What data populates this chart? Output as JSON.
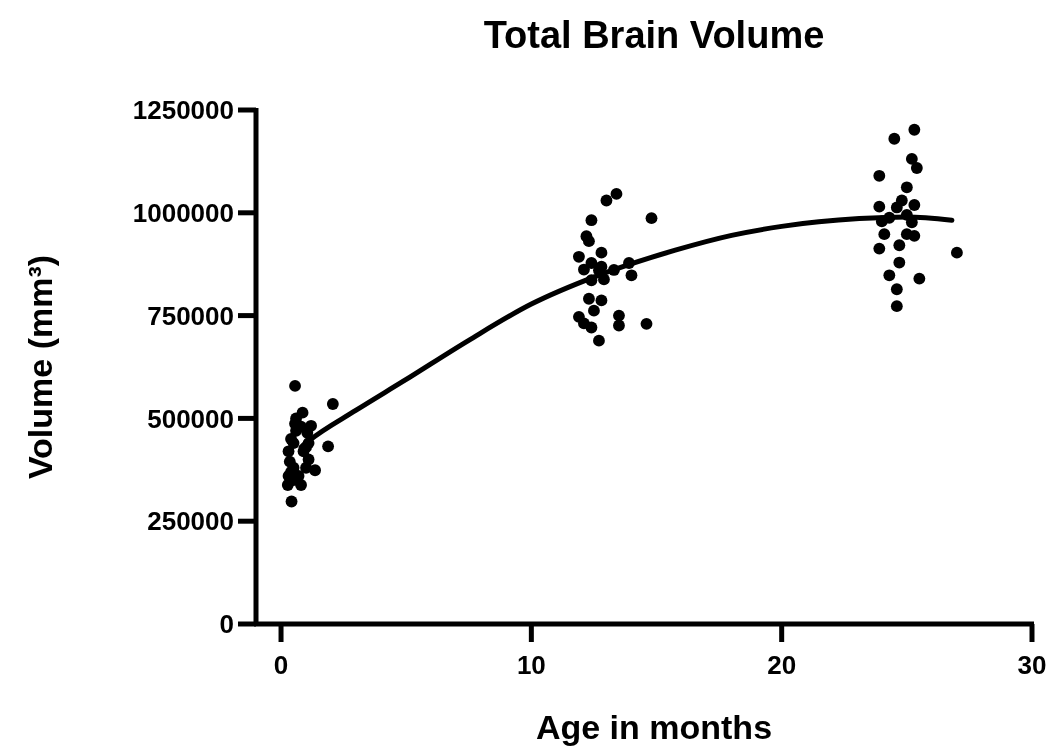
{
  "chart_data": {
    "type": "scatter",
    "title": "Total Brain Volume",
    "xlabel": "Age in months",
    "ylabel": "Volume (mm³)",
    "xlim": [
      -1,
      30
    ],
    "xticks": [
      0,
      10,
      20,
      30
    ],
    "ylim": [
      0,
      1250000
    ],
    "yticks": [
      0,
      250000,
      500000,
      750000,
      1000000,
      1250000
    ],
    "marker": "circle",
    "series": [
      {
        "color": "#000000",
        "x": [
          0.56,
          2.07,
          1.88,
          0.42,
          0.27,
          0.8,
          1.36,
          0.86,
          1.2,
          0.56,
          0.3,
          0.4,
          0.5,
          0.9,
          1.0,
          1.1,
          0.35,
          1.05,
          0.3,
          0.5,
          1.1,
          0.4,
          0.6,
          0.8,
          1.0,
          0.5,
          0.7,
          0.6,
          25.3,
          24.5,
          25.2,
          25.4,
          23.9,
          25.0,
          24.8,
          23.9,
          25.3,
          24.6,
          25.0,
          24.0,
          24.3,
          25.2,
          24.1,
          25.0,
          25.3,
          23.9,
          24.7,
          24.7,
          27.0,
          24.3,
          25.5,
          24.6,
          24.6,
          13.4,
          13.0,
          14.8,
          12.4,
          12.2,
          12.3,
          12.8,
          11.9,
          12.4,
          12.8,
          12.1,
          13.3,
          13.9,
          12.7,
          14.0,
          12.4,
          12.9,
          12.3,
          12.8,
          12.5,
          11.9,
          13.5,
          12.1,
          13.5,
          14.6,
          12.4,
          12.7
        ],
        "values": [
          579000,
          535000,
          432000,
          298000,
          338000,
          338000,
          374000,
          514000,
          482000,
          487000,
          360000,
          370000,
          380000,
          420000,
          430000,
          440000,
          395000,
          465000,
          420000,
          440000,
          400000,
          450000,
          470000,
          480000,
          380000,
          350000,
          360000,
          500000,
          1202000,
          1180000,
          1131000,
          1109000,
          1090000,
          1062000,
          1030000,
          1015000,
          1019000,
          1013000,
          995000,
          979000,
          988000,
          977000,
          948000,
          948000,
          944000,
          913000,
          921000,
          879000,
          903000,
          848000,
          840000,
          814000,
          773000,
          1046000,
          1030000,
          987000,
          982000,
          943000,
          931000,
          903000,
          893000,
          878000,
          869000,
          862000,
          861000,
          878000,
          860000,
          848000,
          836000,
          838000,
          791000,
          787000,
          762000,
          747000,
          750000,
          731000,
          726000,
          730000,
          721000,
          689000
        ]
      },
      {
        "type": "line",
        "color": "#000000",
        "marker": "none",
        "line_style": "solid",
        "x": [
          0.8,
          1.1,
          3,
          4.9,
          7.5,
          10,
          12.6,
          15.75,
          18,
          20,
          23.1,
          25,
          26.8
        ],
        "values": [
          430000,
          445000,
          520000,
          591000,
          690000,
          778000,
          846000,
          909000,
          945000,
          967000,
          986000,
          990000,
          982000
        ]
      }
    ]
  }
}
